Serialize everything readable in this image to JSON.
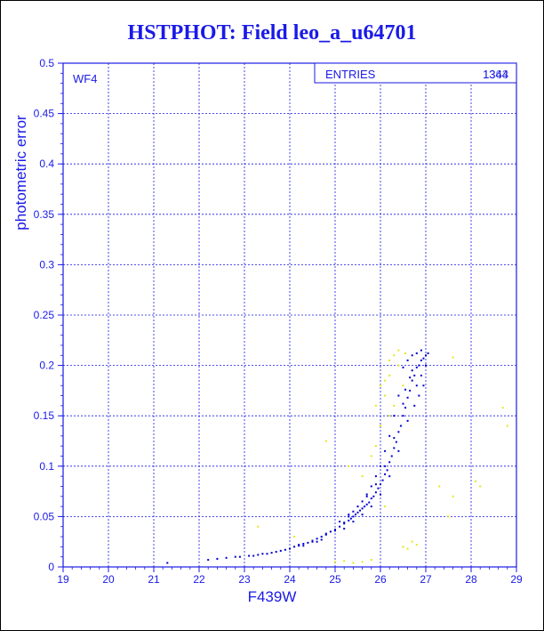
{
  "title": "HSTPHOT: Field leo_a_u64701",
  "panel_label": "WF4",
  "stats_box": {
    "label": "ENTRIES",
    "value_a": "1344",
    "value_b": "1363"
  },
  "colors": {
    "frame": "#1a1ae6",
    "primary_points": "#0000cc",
    "secondary_points": "#e6e619"
  },
  "chart_data": {
    "type": "scatter",
    "title": "HSTPHOT: Field leo_a_u64701",
    "xlabel": "F439W",
    "ylabel": "photometric error",
    "xlim": [
      19,
      29
    ],
    "ylim": [
      0,
      0.5
    ],
    "x_ticks": [
      19,
      20,
      21,
      22,
      23,
      24,
      25,
      26,
      27,
      28,
      29
    ],
    "y_ticks": [
      0,
      0.05,
      0.1,
      0.15,
      0.2,
      0.25,
      0.3,
      0.35,
      0.4,
      0.45,
      0.5
    ],
    "grid": true,
    "series": [
      {
        "color": "#0000cc",
        "points": [
          [
            21.3,
            0.004
          ],
          [
            22.2,
            0.007
          ],
          [
            22.6,
            0.009
          ],
          [
            22.9,
            0.01
          ],
          [
            23.1,
            0.011
          ],
          [
            23.3,
            0.012
          ],
          [
            23.5,
            0.013
          ],
          [
            23.7,
            0.015
          ],
          [
            23.8,
            0.016
          ],
          [
            23.9,
            0.017
          ],
          [
            24.0,
            0.018
          ],
          [
            24.1,
            0.02
          ],
          [
            24.2,
            0.021
          ],
          [
            24.3,
            0.023
          ],
          [
            24.4,
            0.024
          ],
          [
            24.5,
            0.026
          ],
          [
            24.6,
            0.028
          ],
          [
            24.7,
            0.03
          ],
          [
            24.8,
            0.033
          ],
          [
            24.9,
            0.035
          ],
          [
            25.0,
            0.037
          ],
          [
            25.1,
            0.04
          ],
          [
            25.2,
            0.043
          ],
          [
            25.3,
            0.046
          ],
          [
            25.4,
            0.05
          ],
          [
            25.5,
            0.054
          ],
          [
            25.6,
            0.058
          ],
          [
            25.7,
            0.062
          ],
          [
            25.8,
            0.068
          ],
          [
            25.9,
            0.074
          ],
          [
            26.0,
            0.082
          ],
          [
            26.1,
            0.092
          ],
          [
            26.2,
            0.104
          ],
          [
            26.3,
            0.118
          ],
          [
            26.4,
            0.134
          ],
          [
            26.5,
            0.15
          ],
          [
            26.6,
            0.168
          ],
          [
            26.7,
            0.185
          ],
          [
            26.8,
            0.198
          ],
          [
            26.9,
            0.205
          ],
          [
            27.0,
            0.21
          ],
          [
            24.2,
            0.022
          ],
          [
            24.5,
            0.025
          ],
          [
            24.8,
            0.032
          ],
          [
            25.0,
            0.036
          ],
          [
            25.2,
            0.044
          ],
          [
            25.35,
            0.048
          ],
          [
            25.45,
            0.052
          ],
          [
            25.55,
            0.056
          ],
          [
            25.65,
            0.06
          ],
          [
            25.75,
            0.064
          ],
          [
            25.85,
            0.07
          ],
          [
            25.95,
            0.078
          ],
          [
            26.05,
            0.086
          ],
          [
            26.15,
            0.096
          ],
          [
            26.25,
            0.11
          ],
          [
            26.35,
            0.124
          ],
          [
            26.45,
            0.14
          ],
          [
            26.55,
            0.158
          ],
          [
            26.65,
            0.175
          ],
          [
            26.75,
            0.19
          ],
          [
            26.85,
            0.2
          ],
          [
            26.95,
            0.207
          ],
          [
            25.1,
            0.045
          ],
          [
            25.3,
            0.052
          ],
          [
            25.5,
            0.06
          ],
          [
            25.7,
            0.07
          ],
          [
            25.9,
            0.082
          ],
          [
            26.1,
            0.1
          ],
          [
            26.3,
            0.128
          ],
          [
            26.5,
            0.162
          ],
          [
            26.7,
            0.195
          ],
          [
            25.2,
            0.038
          ],
          [
            25.4,
            0.045
          ],
          [
            25.6,
            0.052
          ],
          [
            25.8,
            0.06
          ],
          [
            26.0,
            0.072
          ],
          [
            26.2,
            0.09
          ],
          [
            26.4,
            0.115
          ],
          [
            26.6,
            0.145
          ],
          [
            26.8,
            0.18
          ],
          [
            26.9,
            0.19
          ],
          [
            27.0,
            0.2
          ],
          [
            26.7,
            0.21
          ],
          [
            26.8,
            0.212
          ],
          [
            26.6,
            0.205
          ],
          [
            26.5,
            0.198
          ],
          [
            26.4,
            0.17
          ],
          [
            26.3,
            0.15
          ],
          [
            26.2,
            0.13
          ],
          [
            26.1,
            0.115
          ],
          [
            26.0,
            0.1
          ],
          [
            25.9,
            0.09
          ],
          [
            25.8,
            0.08
          ],
          [
            25.7,
            0.072
          ],
          [
            25.6,
            0.065
          ],
          [
            25.5,
            0.06
          ],
          [
            25.4,
            0.055
          ],
          [
            25.3,
            0.05
          ],
          [
            24.7,
            0.027
          ],
          [
            24.6,
            0.025
          ],
          [
            24.3,
            0.021
          ],
          [
            23.6,
            0.014
          ],
          [
            23.4,
            0.013
          ],
          [
            23.2,
            0.011
          ],
          [
            22.8,
            0.01
          ],
          [
            22.4,
            0.008
          ],
          [
            26.95,
            0.18
          ],
          [
            26.85,
            0.17
          ],
          [
            26.75,
            0.16
          ],
          [
            26.9,
            0.215
          ],
          [
            27.05,
            0.212
          ],
          [
            26.65,
            0.188
          ],
          [
            26.55,
            0.176
          ]
        ]
      },
      {
        "color": "#e6e619",
        "points": [
          [
            23.3,
            0.04
          ],
          [
            24.1,
            0.03
          ],
          [
            25.0,
            0.005
          ],
          [
            25.2,
            0.006
          ],
          [
            25.4,
            0.004
          ],
          [
            25.6,
            0.005
          ],
          [
            25.8,
            0.007
          ],
          [
            26.5,
            0.02
          ],
          [
            26.6,
            0.018
          ],
          [
            26.7,
            0.025
          ],
          [
            26.8,
            0.022
          ],
          [
            26.3,
            0.21
          ],
          [
            26.2,
            0.19
          ],
          [
            26.4,
            0.2
          ],
          [
            26.1,
            0.17
          ],
          [
            26.0,
            0.14
          ],
          [
            25.9,
            0.12
          ],
          [
            26.5,
            0.18
          ],
          [
            26.3,
            0.16
          ],
          [
            26.2,
            0.15
          ],
          [
            27.3,
            0.08
          ],
          [
            27.5,
            0.05
          ],
          [
            27.6,
            0.07
          ],
          [
            28.1,
            0.085
          ],
          [
            28.2,
            0.08
          ],
          [
            28.7,
            0.158
          ],
          [
            28.8,
            0.14
          ],
          [
            27.6,
            0.208
          ],
          [
            24.8,
            0.125
          ],
          [
            25.3,
            0.1
          ],
          [
            25.6,
            0.09
          ],
          [
            25.8,
            0.11
          ],
          [
            26.1,
            0.06
          ],
          [
            26.4,
            0.215
          ],
          [
            26.55,
            0.212
          ],
          [
            26.0,
            0.18
          ],
          [
            26.2,
            0.205
          ],
          [
            25.9,
            0.16
          ],
          [
            26.1,
            0.185
          ]
        ]
      }
    ]
  }
}
